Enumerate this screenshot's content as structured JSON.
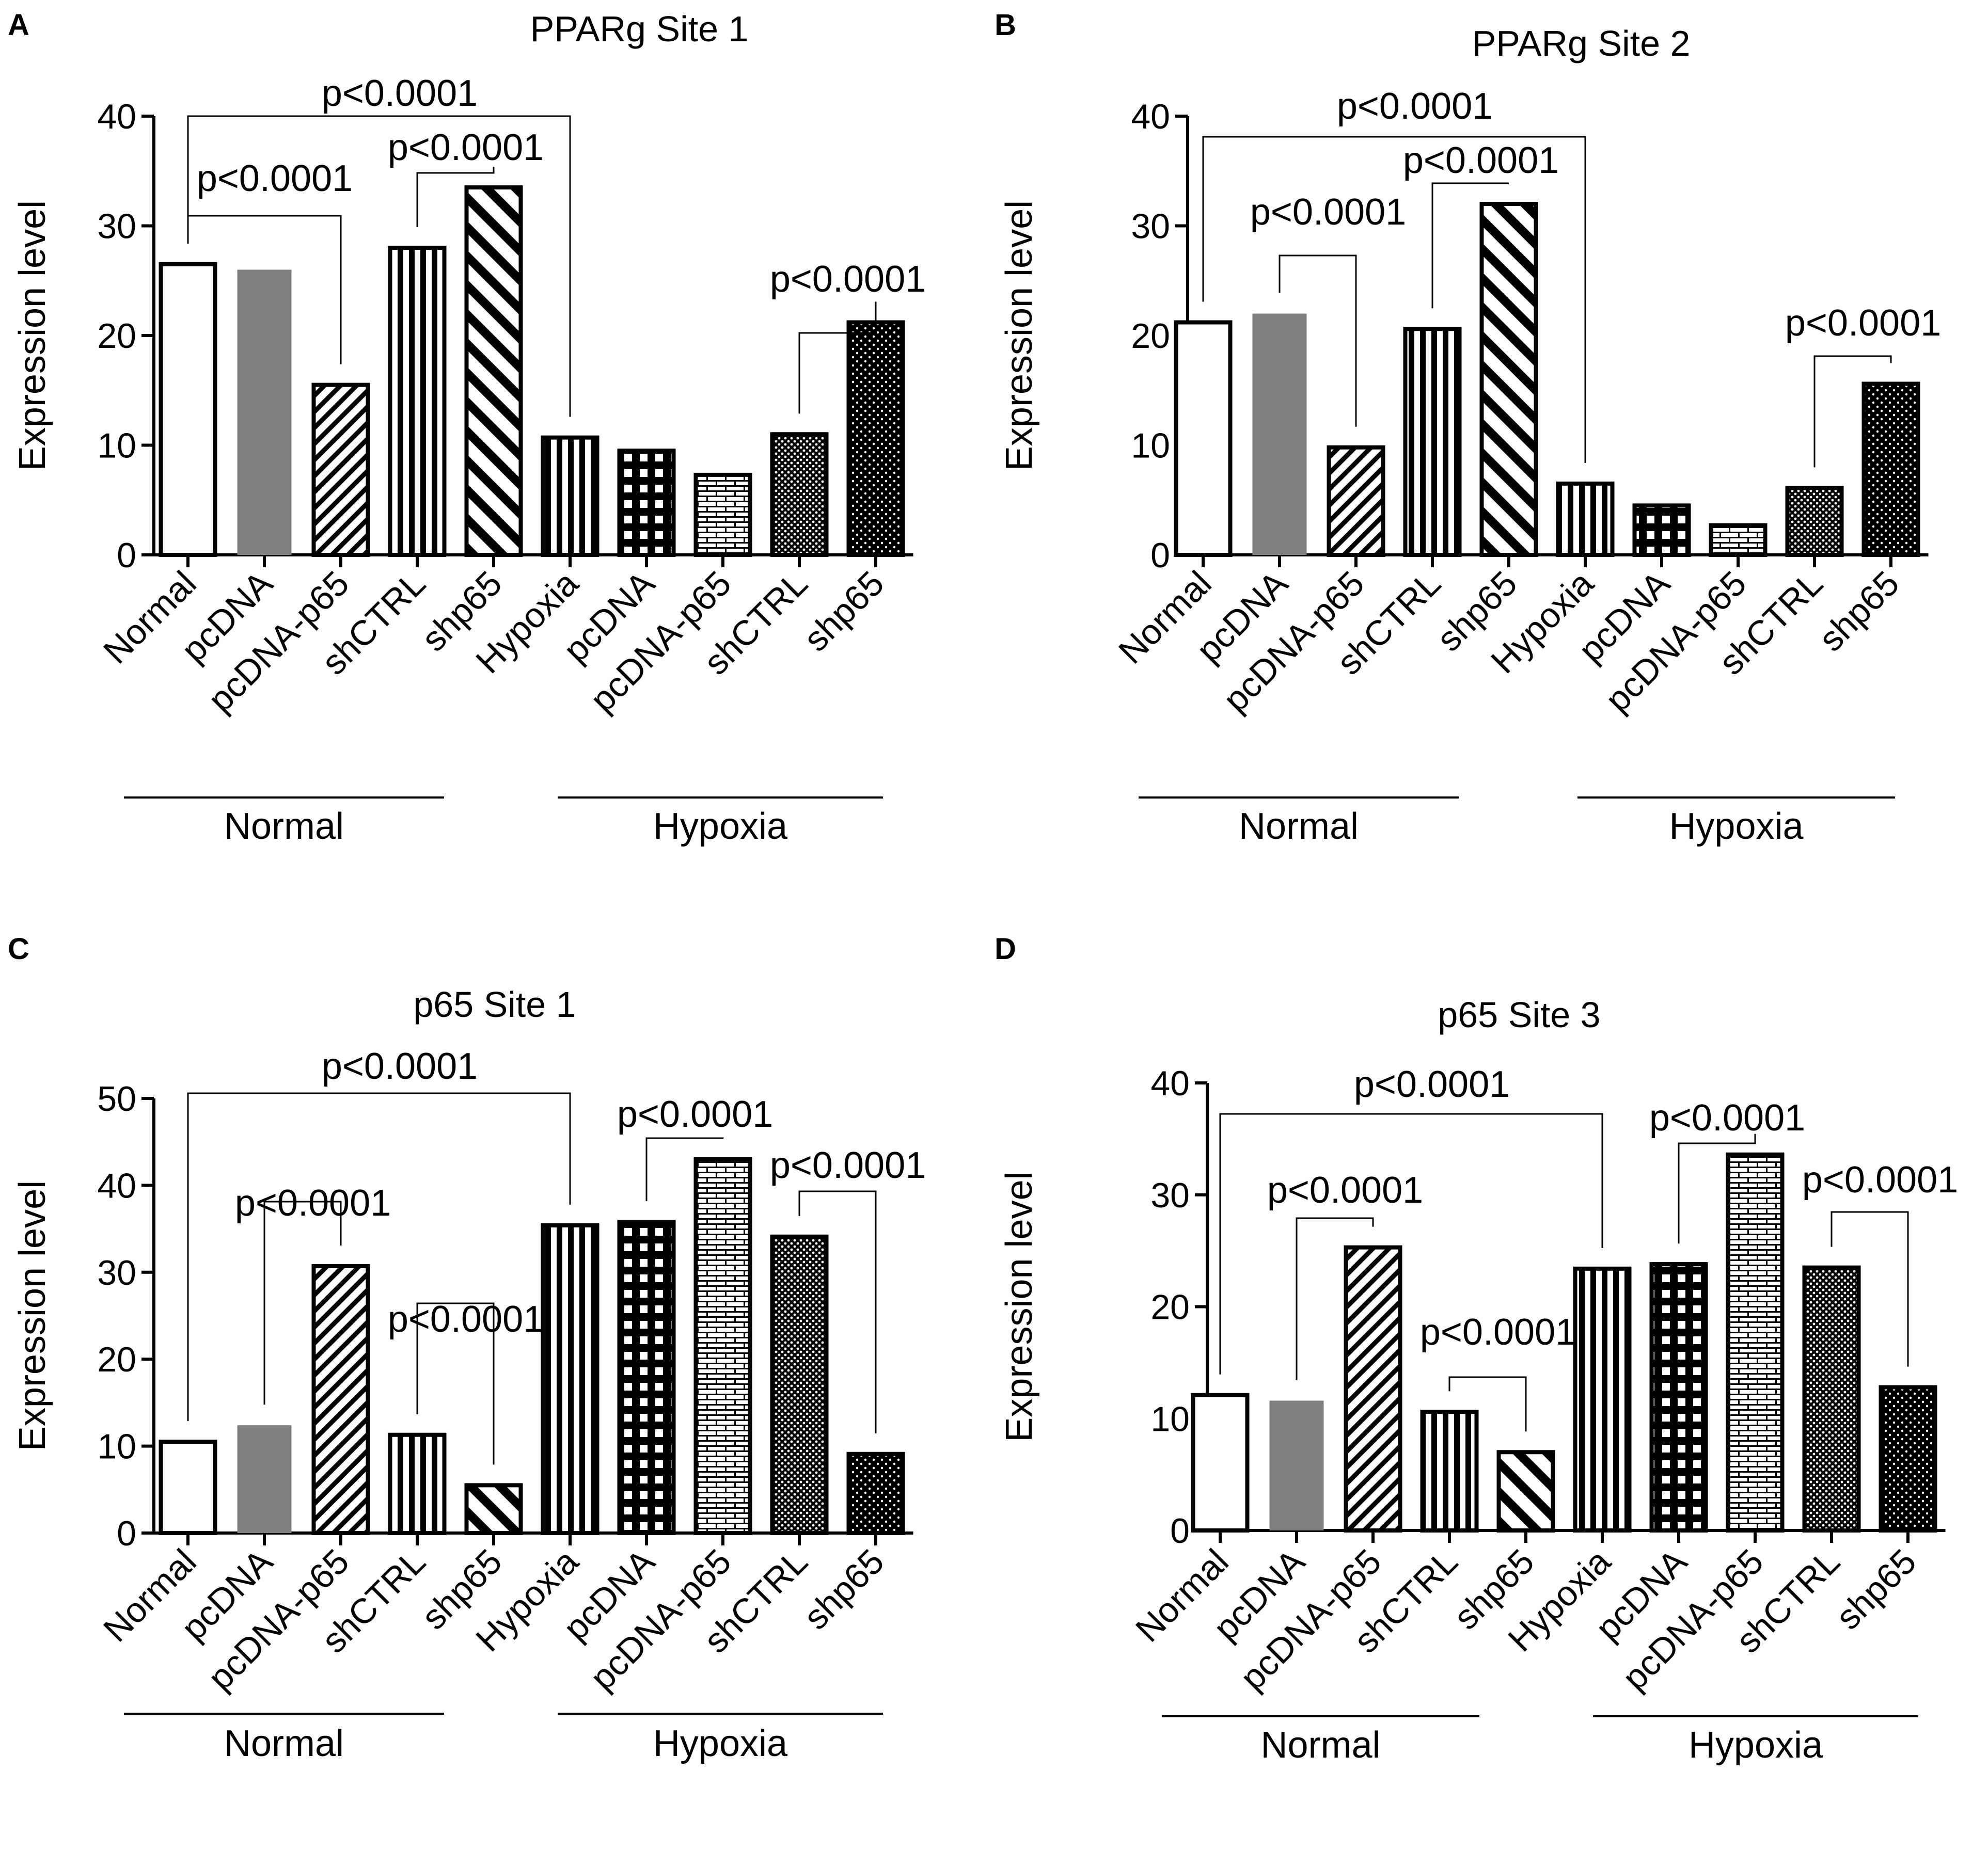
{
  "figure": {
    "categories": [
      "Normal",
      "pcDNA",
      "pcDNA-p65",
      "shCTRL",
      "shp65",
      "Hypoxia",
      "pcDNA",
      "pcDNA-p65",
      "shCTRL",
      "shp65"
    ],
    "patterns": [
      "open",
      "gray",
      "diag",
      "vert",
      "diag-wide",
      "vert",
      "grid",
      "brick",
      "dots-dense",
      "dots"
    ],
    "groups": [
      "Normal",
      "Hypoxia"
    ],
    "colors": {
      "ink": "#000000",
      "gray": "#808080",
      "background": "#ffffff"
    }
  },
  "chart_data": [
    {
      "panel": "A",
      "type": "bar",
      "title": "PPARg Site 1",
      "ylabel": "Expression level",
      "ylim": [
        0,
        40
      ],
      "yticks": [
        0,
        10,
        20,
        30,
        40
      ],
      "values": [
        26.5,
        26,
        15.5,
        28,
        33.5,
        10.7,
        9.5,
        7.3,
        11,
        21.2
      ],
      "brackets": [
        {
          "from": 0,
          "to": 5,
          "label": "p<0.0001"
        },
        {
          "from": 0,
          "to": 2,
          "label": "p<0.0001"
        },
        {
          "from": 3,
          "to": 4,
          "label": "p<0.0001"
        },
        {
          "from": 8,
          "to": 9,
          "label": "p<0.0001"
        }
      ]
    },
    {
      "panel": "B",
      "type": "bar",
      "title": "PPARg Site 2",
      "ylabel": "Expression level",
      "ylim": [
        0,
        40
      ],
      "yticks": [
        0,
        10,
        20,
        30,
        40
      ],
      "values": [
        21.2,
        22,
        9.8,
        20.6,
        32,
        6.5,
        4.5,
        2.7,
        6.1,
        15.6
      ],
      "brackets": [
        {
          "from": 0,
          "to": 5,
          "label": "p<0.0001"
        },
        {
          "from": 1,
          "to": 2,
          "label": "p<0.0001"
        },
        {
          "from": 3,
          "to": 4,
          "label": "p<0.0001"
        },
        {
          "from": 8,
          "to": 9,
          "label": "p<0.0001"
        }
      ]
    },
    {
      "panel": "C",
      "type": "bar",
      "title": "p65 Site 1",
      "ylabel": "Expression level",
      "ylim": [
        0,
        50
      ],
      "yticks": [
        0,
        10,
        20,
        30,
        40,
        50
      ],
      "values": [
        10.5,
        12.4,
        30.7,
        11.3,
        5.5,
        35.4,
        35.8,
        43,
        34.1,
        9.1
      ],
      "brackets": [
        {
          "from": 0,
          "to": 5,
          "label": "p<0.0001"
        },
        {
          "from": 1,
          "to": 2,
          "label": "p<0.0001"
        },
        {
          "from": 3,
          "to": 4,
          "label": "p<0.0001"
        },
        {
          "from": 6,
          "to": 7,
          "label": "p<0.0001"
        },
        {
          "from": 8,
          "to": 9,
          "label": "p<0.0001"
        }
      ]
    },
    {
      "panel": "D",
      "type": "bar",
      "title": "p65 Site 3",
      "ylabel": "Expression level",
      "ylim": [
        0,
        40
      ],
      "yticks": [
        0,
        10,
        20,
        30,
        40
      ],
      "values": [
        12.1,
        11.6,
        25.3,
        10.6,
        7,
        23.4,
        23.8,
        33.6,
        23.5,
        12.8
      ],
      "brackets": [
        {
          "from": 0,
          "to": 5,
          "label": "p<0.0001"
        },
        {
          "from": 1,
          "to": 2,
          "label": "p<0.0001"
        },
        {
          "from": 3,
          "to": 4,
          "label": "p<0.0001"
        },
        {
          "from": 6,
          "to": 7,
          "label": "p<0.0001"
        },
        {
          "from": 8,
          "to": 9,
          "label": "p<0.0001"
        }
      ]
    }
  ]
}
